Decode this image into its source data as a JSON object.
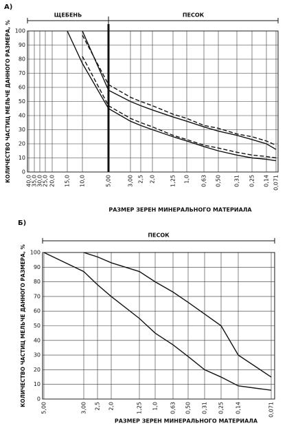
{
  "chart_data": [
    {
      "type": "line",
      "panel_label": "А)",
      "zones": [
        "ЩЕБЕНЬ",
        "ПЕСОК"
      ],
      "y_label": "КОЛИЧЕСТВО ЧАСТИЦ МЕЛЬЧЕ ДАННОГО РАЗМЕРА, %",
      "x_label": "РАЗМЕР ЗЕРЕН МИНЕРАЛЬНОГО МАТЕРИАЛА",
      "categories": [
        "40,0",
        "35,0",
        "30,0",
        "25,0",
        "20,0",
        "15,0",
        "10,0",
        "5,00",
        "3,00",
        "2,5",
        "2,0",
        "1,25",
        "1,0",
        "0,63",
        "0,50",
        "0,31",
        "0,25",
        "0,14",
        "0,071"
      ],
      "ylim": [
        0,
        100
      ],
      "yticks": [
        0,
        10,
        20,
        30,
        40,
        50,
        60,
        70,
        80,
        90,
        100
      ],
      "grid": true,
      "series": [
        {
          "color": "#111",
          "dash": "solid",
          "values": [
            null,
            null,
            null,
            null,
            null,
            100,
            77,
            45,
            36,
            33,
            30,
            25,
            22,
            18,
            15,
            12,
            10,
            9,
            8
          ]
        },
        {
          "color": "#111",
          "dash": "solid",
          "values": [
            null,
            null,
            null,
            null,
            null,
            null,
            100,
            58,
            50,
            47,
            44,
            39,
            36,
            32,
            29,
            26,
            23,
            20,
            16
          ]
        },
        {
          "color": "#111",
          "dash": "dashed",
          "values": [
            null,
            null,
            null,
            null,
            null,
            null,
            97,
            62,
            53,
            50,
            47,
            41,
            38,
            33,
            31,
            27,
            25,
            22,
            19
          ]
        },
        {
          "color": "#111",
          "dash": "dashed",
          "values": [
            null,
            null,
            null,
            null,
            null,
            null,
            82,
            47,
            38,
            35,
            32,
            26,
            23,
            19,
            17,
            14,
            12,
            11,
            10
          ]
        }
      ]
    },
    {
      "type": "line",
      "panel_label": "Б)",
      "zones": [
        "ПЕСОК"
      ],
      "y_label": "КОЛИЧЕСТВО ЧАСТИЦ МЕЛЬЧЕ ДАННОГО РАЗМЕРА, %",
      "x_label": "РАЗМЕР ЗЕРЕН МИНЕРАЛЬНОГО МАТЕРИАЛА",
      "categories": [
        "5,00",
        "3,00",
        "2,5",
        "2,0",
        "1,25",
        "1,0",
        "0,63",
        "0,50",
        "0,31",
        "0,25",
        "0,14",
        "0,071"
      ],
      "ylim": [
        0,
        100
      ],
      "yticks": [
        0,
        10,
        20,
        30,
        40,
        50,
        60,
        70,
        80,
        90,
        100
      ],
      "grid": true,
      "series": [
        {
          "color": "#111",
          "dash": "solid",
          "values": [
            null,
            100,
            97,
            93,
            87,
            80,
            73,
            66,
            58,
            50,
            30,
            15
          ]
        },
        {
          "color": "#111",
          "dash": "solid",
          "values": [
            100,
            87,
            78,
            70,
            55,
            45,
            37,
            29,
            20,
            15,
            9,
            6
          ]
        }
      ]
    }
  ]
}
